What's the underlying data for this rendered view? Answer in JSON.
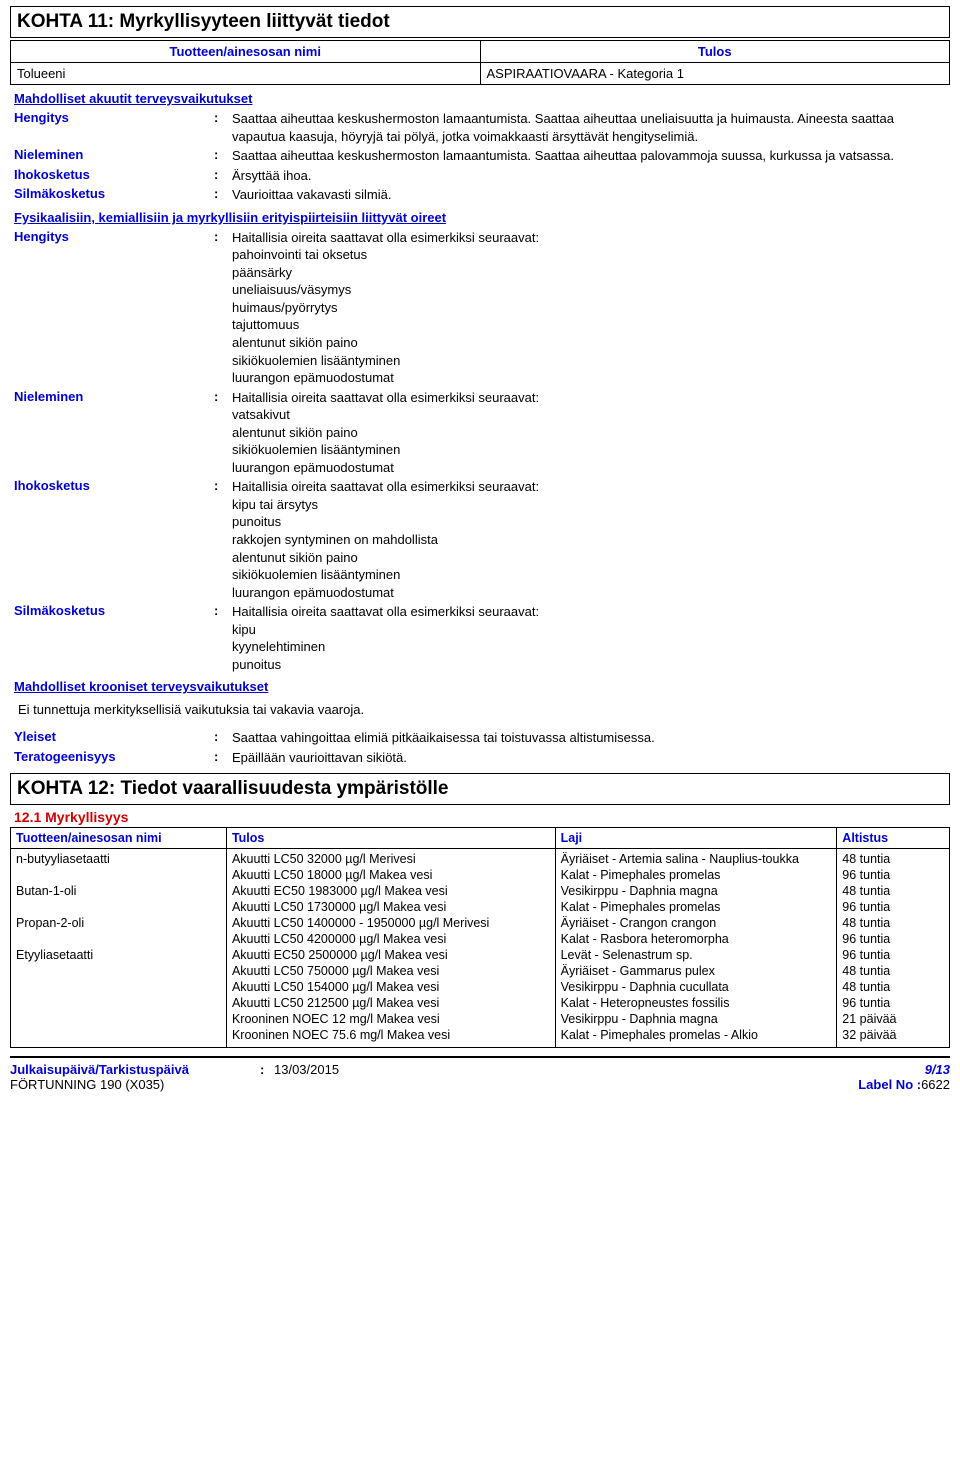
{
  "colors": {
    "link": "#0000cc",
    "red": "#cc0000",
    "border": "#000000",
    "text": "#000000",
    "background": "#ffffff"
  },
  "section11": {
    "title": "KOHTA 11: Myrkyllisyyteen liittyvät tiedot",
    "colHeaders": {
      "name": "Tuotteen/ainesosan nimi",
      "result": "Tulos"
    },
    "row1": {
      "name": "Tolueeni",
      "result": "ASPIRAATIOVAARA - Kategoria 1"
    },
    "acuteHeading": "Mahdolliset akuutit terveysvaikutukset",
    "acute": {
      "hengitys": {
        "label": "Hengitys",
        "value": "Saattaa aiheuttaa keskushermoston lamaantumista. Saattaa aiheuttaa uneliaisuutta ja huimausta. Aineesta saattaa vapautua kaasuja, höyryjä tai pölyä, jotka voimakkaasti ärsyttävät hengityselimiä."
      },
      "nieleminen": {
        "label": "Nieleminen",
        "value": "Saattaa aiheuttaa keskushermoston lamaantumista. Saattaa aiheuttaa palovammoja suussa, kurkussa ja vatsassa."
      },
      "ihokosketus": {
        "label": "Ihokosketus",
        "value": "Ärsyttää ihoa."
      },
      "silmakosketus": {
        "label": "Silmäkosketus",
        "value": "Vaurioittaa vakavasti silmiä."
      }
    },
    "symptomsHeading": "Fysikaalisiin, kemiallisiin ja myrkyllisiin erityispiirteisiin liittyvät oireet",
    "symptoms": {
      "hengitys": {
        "label": "Hengitys",
        "lines": [
          "Haitallisia oireita saattavat olla esimerkiksi seuraavat:",
          "pahoinvointi tai oksetus",
          "päänsärky",
          "uneliaisuus/väsymys",
          "huimaus/pyörrytys",
          "tajuttomuus",
          "alentunut sikiön paino",
          "sikiökuolemien lisääntyminen",
          "luurangon epämuodostumat"
        ]
      },
      "nieleminen": {
        "label": "Nieleminen",
        "lines": [
          "Haitallisia oireita saattavat olla esimerkiksi seuraavat:",
          "vatsakivut",
          "alentunut sikiön paino",
          "sikiökuolemien lisääntyminen",
          "luurangon epämuodostumat"
        ]
      },
      "ihokosketus": {
        "label": "Ihokosketus",
        "lines": [
          "Haitallisia oireita saattavat olla esimerkiksi seuraavat:",
          "kipu tai ärsytys",
          "punoitus",
          "rakkojen syntyminen on mahdollista",
          "alentunut sikiön paino",
          "sikiökuolemien lisääntyminen",
          "luurangon epämuodostumat"
        ]
      },
      "silmakosketus": {
        "label": "Silmäkosketus",
        "lines": [
          "Haitallisia oireita saattavat olla esimerkiksi seuraavat:",
          "kipu",
          "kyynelehtiminen",
          "punoitus"
        ]
      }
    },
    "chronicHeading": "Mahdolliset krooniset terveysvaikutukset",
    "chronicNote": "Ei tunnettuja merkityksellisiä vaikutuksia tai vakavia vaaroja.",
    "yleiset": {
      "label": "Yleiset",
      "value": "Saattaa vahingoittaa elimiä pitkäaikaisessa tai toistuvassa altistumisessa."
    },
    "teratogeenisyys": {
      "label": "Teratogeenisyys",
      "value": "Epäillään vaurioittavan sikiötä."
    }
  },
  "section12": {
    "title": "KOHTA 12: Tiedot vaarallisuudesta ympäristölle",
    "sub1": "12.1 Myrkyllisyys",
    "columns": {
      "name": "Tuotteen/ainesosan nimi",
      "result": "Tulos",
      "species": "Laji",
      "exposure": "Altistus"
    },
    "rows": [
      {
        "name": "n-butyyliasetaatti",
        "result": "Akuutti LC50 32000 µg/l Merivesi",
        "species": "Äyriäiset - Artemia salina - Nauplius-toukka",
        "exposure": "48 tuntia"
      },
      {
        "name": "",
        "result": "Akuutti LC50 18000 µg/l Makea vesi",
        "species": "Kalat - Pimephales promelas",
        "exposure": "96 tuntia"
      },
      {
        "name": "Butan-1-oli",
        "result": "Akuutti EC50 1983000 µg/l Makea vesi",
        "species": "Vesikirppu - Daphnia magna",
        "exposure": "48 tuntia"
      },
      {
        "name": "",
        "result": "Akuutti LC50 1730000 µg/l Makea vesi",
        "species": "Kalat - Pimephales promelas",
        "exposure": "96 tuntia"
      },
      {
        "name": "Propan-2-oli",
        "result": "Akuutti LC50 1400000 - 1950000 µg/l Merivesi",
        "species": "Äyriäiset - Crangon crangon",
        "exposure": "48 tuntia"
      },
      {
        "name": "",
        "result": "Akuutti LC50 4200000 µg/l Makea vesi",
        "species": "Kalat - Rasbora heteromorpha",
        "exposure": "96 tuntia"
      },
      {
        "name": "Etyyliasetaatti",
        "result": "Akuutti EC50 2500000 µg/l Makea vesi",
        "species": "Levät - Selenastrum sp.",
        "exposure": "96 tuntia"
      },
      {
        "name": "",
        "result": "Akuutti LC50 750000 µg/l Makea vesi",
        "species": "Äyriäiset - Gammarus pulex",
        "exposure": "48 tuntia"
      },
      {
        "name": "",
        "result": "Akuutti LC50 154000 µg/l Makea vesi",
        "species": "Vesikirppu - Daphnia cucullata",
        "exposure": "48 tuntia"
      },
      {
        "name": "",
        "result": "Akuutti LC50 212500 µg/l Makea vesi",
        "species": "Kalat - Heteropneustes fossilis",
        "exposure": "96 tuntia"
      },
      {
        "name": "",
        "result": "Krooninen NOEC 12 mg/l Makea vesi",
        "species": "Vesikirppu - Daphnia magna",
        "exposure": "21 päivää"
      },
      {
        "name": "",
        "result": "Krooninen NOEC 75.6 mg/l Makea vesi",
        "species": "Kalat - Pimephales promelas - Alkio",
        "exposure": "32 päivää"
      }
    ]
  },
  "footer": {
    "dateLabel": "Julkaisupäivä/Tarkistuspäivä",
    "dateColon": ":",
    "dateValue": "13/03/2015",
    "product": "FÖRTUNNING 190 (X035)",
    "page": "9/13",
    "labelNoLabel": "Label No :",
    "labelNoValue": "6622"
  }
}
